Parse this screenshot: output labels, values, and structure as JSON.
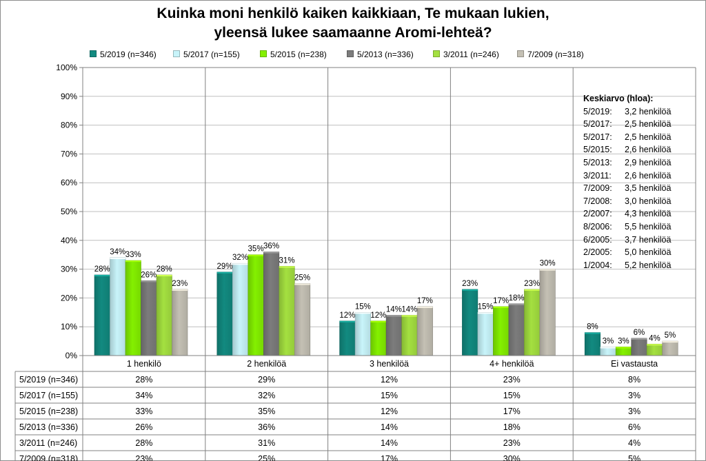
{
  "chart_data": {
    "type": "bar",
    "title": "Kuinka moni henkilö kaiken kaikkiaan, Te mukaan lukien,",
    "subtitle": "yleensä lukee saamaanne Aromi-lehteä?",
    "categories": [
      "1 henkilö",
      "2 henkilöä",
      "3 henkilöä",
      "4+ henkilöä",
      "Ei vastausta"
    ],
    "ylim": [
      0,
      100
    ],
    "yticks": [
      "0%",
      "10%",
      "20%",
      "30%",
      "40%",
      "50%",
      "60%",
      "70%",
      "80%",
      "90%",
      "100%"
    ],
    "legend_position": "top",
    "series": [
      {
        "name": "5/2019 (n=346)",
        "values": [
          28,
          29,
          12,
          23,
          8
        ],
        "labels": [
          "28%",
          "29%",
          "12%",
          "23%",
          "8%"
        ],
        "color": "#128a80"
      },
      {
        "name": "5/2017 (n=155)",
        "values": [
          34,
          32,
          15,
          15,
          3
        ],
        "labels": [
          "34%",
          "32%",
          "15%",
          "15%",
          "3%"
        ],
        "color": "#c8f4fa"
      },
      {
        "name": "5/2015 (n=238)",
        "values": [
          33,
          35,
          12,
          17,
          3
        ],
        "labels": [
          "33%",
          "35%",
          "12%",
          "17%",
          "3%"
        ],
        "color": "#84f000"
      },
      {
        "name": "5/2013 (n=336)",
        "values": [
          26,
          36,
          14,
          18,
          6
        ],
        "labels": [
          "26%",
          "36%",
          "14%",
          "18%",
          "6%"
        ],
        "color": "#7c7c7c"
      },
      {
        "name": "3/2011 (n=246)",
        "values": [
          28,
          31,
          14,
          23,
          4
        ],
        "labels": [
          "28%",
          "31%",
          "14%",
          "23%",
          "4%"
        ],
        "color": "#a4e040"
      },
      {
        "name": "7/2009 (n=318)",
        "values": [
          23,
          25,
          17,
          30,
          5
        ],
        "labels": [
          "23%",
          "25%",
          "17%",
          "30%",
          "5%"
        ],
        "color": "#c4c0b4"
      }
    ],
    "data_table": true
  },
  "mean_box": {
    "title": "Keskiarvo (hloa):",
    "rows": [
      {
        "period": "5/2019:",
        "value": "3,2 henkilöä"
      },
      {
        "period": "5/2017:",
        "value": "2,5 henkilöä"
      },
      {
        "period": "5/2017:",
        "value": "2,5 henkilöä"
      },
      {
        "period": "5/2015:",
        "value": "2,6 henkilöä"
      },
      {
        "period": "5/2013:",
        "value": "2,9 henkilöä"
      },
      {
        "period": "3/2011:",
        "value": "2,6 henkilöä"
      },
      {
        "period": "7/2009:",
        "value": "3,5 henkilöä"
      },
      {
        "period": "7/2008:",
        "value": "3,0 henkilöä"
      },
      {
        "period": "2/2007:",
        "value": "4,3 henkilöä"
      },
      {
        "period": "8/2006:",
        "value": "5,5 henkilöä"
      },
      {
        "period": "6/2005:",
        "value": "3,7 henkilöä"
      },
      {
        "period": "2/2005:",
        "value": "5,0 henkilöä"
      },
      {
        "period": "1/2004:",
        "value": "5,2 henkilöä"
      }
    ]
  }
}
